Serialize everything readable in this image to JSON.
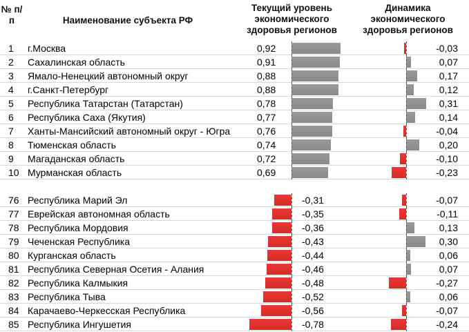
{
  "table": {
    "headers": [
      "№ п/п",
      "Наименование субъекта РФ",
      "Текущий уровень экономического здоровья регионов",
      "Динамика экономического здоровья регионов"
    ],
    "current_xlim": [
      -0.78,
      0.92
    ],
    "dynamics_xlim": [
      -0.27,
      0.31
    ],
    "groups": [
      {
        "rows": [
          {
            "rank": "1",
            "name": "г.Москва",
            "current": 0.92,
            "current_label": "0,92",
            "dynamics": -0.03,
            "dynamics_label": "-0,03"
          },
          {
            "rank": "2",
            "name": "Сахалинская область",
            "current": 0.91,
            "current_label": "0,91",
            "dynamics": 0.07,
            "dynamics_label": "0,07"
          },
          {
            "rank": "3",
            "name": "Ямало-Ненецкий автономный округ",
            "current": 0.88,
            "current_label": "0,88",
            "dynamics": 0.17,
            "dynamics_label": "0,17"
          },
          {
            "rank": "4",
            "name": "г.Санкт-Петербург",
            "current": 0.88,
            "current_label": "0,88",
            "dynamics": 0.12,
            "dynamics_label": "0,12"
          },
          {
            "rank": "5",
            "name": "Республика Татарстан (Татарстан)",
            "current": 0.78,
            "current_label": "0,78",
            "dynamics": 0.31,
            "dynamics_label": "0,31"
          },
          {
            "rank": "6",
            "name": "Республика Саха (Якутия)",
            "current": 0.77,
            "current_label": "0,77",
            "dynamics": 0.14,
            "dynamics_label": "0,14"
          },
          {
            "rank": "7",
            "name": "Ханты-Мансийский автономный округ - Югра",
            "current": 0.76,
            "current_label": "0,76",
            "dynamics": -0.04,
            "dynamics_label": "-0,04"
          },
          {
            "rank": "8",
            "name": "Тюменская область",
            "current": 0.74,
            "current_label": "0,74",
            "dynamics": 0.2,
            "dynamics_label": "0,20"
          },
          {
            "rank": "9",
            "name": "Магаданская область",
            "current": 0.72,
            "current_label": "0,72",
            "dynamics": -0.1,
            "dynamics_label": "-0,10"
          },
          {
            "rank": "10",
            "name": "Мурманская область",
            "current": 0.69,
            "current_label": "0,69",
            "dynamics": -0.23,
            "dynamics_label": "-0,23"
          }
        ]
      },
      {
        "rows": [
          {
            "rank": "76",
            "name": "Республика Марий Эл",
            "current": -0.31,
            "current_label": "-0,31",
            "dynamics": -0.07,
            "dynamics_label": "-0,07"
          },
          {
            "rank": "77",
            "name": "Еврейская автономная область",
            "current": -0.35,
            "current_label": "-0,35",
            "dynamics": -0.11,
            "dynamics_label": "-0,11"
          },
          {
            "rank": "78",
            "name": "Республика Мордовия",
            "current": -0.36,
            "current_label": "-0,36",
            "dynamics": 0.13,
            "dynamics_label": "0,13"
          },
          {
            "rank": "79",
            "name": "Чеченская Республика",
            "current": -0.43,
            "current_label": "-0,43",
            "dynamics": 0.3,
            "dynamics_label": "0,30"
          },
          {
            "rank": "80",
            "name": "Курганская область",
            "current": -0.44,
            "current_label": "-0,44",
            "dynamics": 0.06,
            "dynamics_label": "0,06"
          },
          {
            "rank": "81",
            "name": "Республика Северная Осетия - Алания",
            "current": -0.46,
            "current_label": "-0,46",
            "dynamics": 0.07,
            "dynamics_label": "0,07"
          },
          {
            "rank": "82",
            "name": "Республика Калмыкия",
            "current": -0.48,
            "current_label": "-0,48",
            "dynamics": -0.27,
            "dynamics_label": "-0,27"
          },
          {
            "rank": "83",
            "name": "Республика Тыва",
            "current": -0.52,
            "current_label": "-0,52",
            "dynamics": 0.06,
            "dynamics_label": "0,06"
          },
          {
            "rank": "84",
            "name": "Карачаево-Черкесская Республика",
            "current": -0.56,
            "current_label": "-0,56",
            "dynamics": -0.07,
            "dynamics_label": "-0,07"
          },
          {
            "rank": "85",
            "name": "Республика Ингушетия",
            "current": -0.78,
            "current_label": "-0,78",
            "dynamics": -0.24,
            "dynamics_label": "-0,24"
          }
        ]
      }
    ]
  }
}
